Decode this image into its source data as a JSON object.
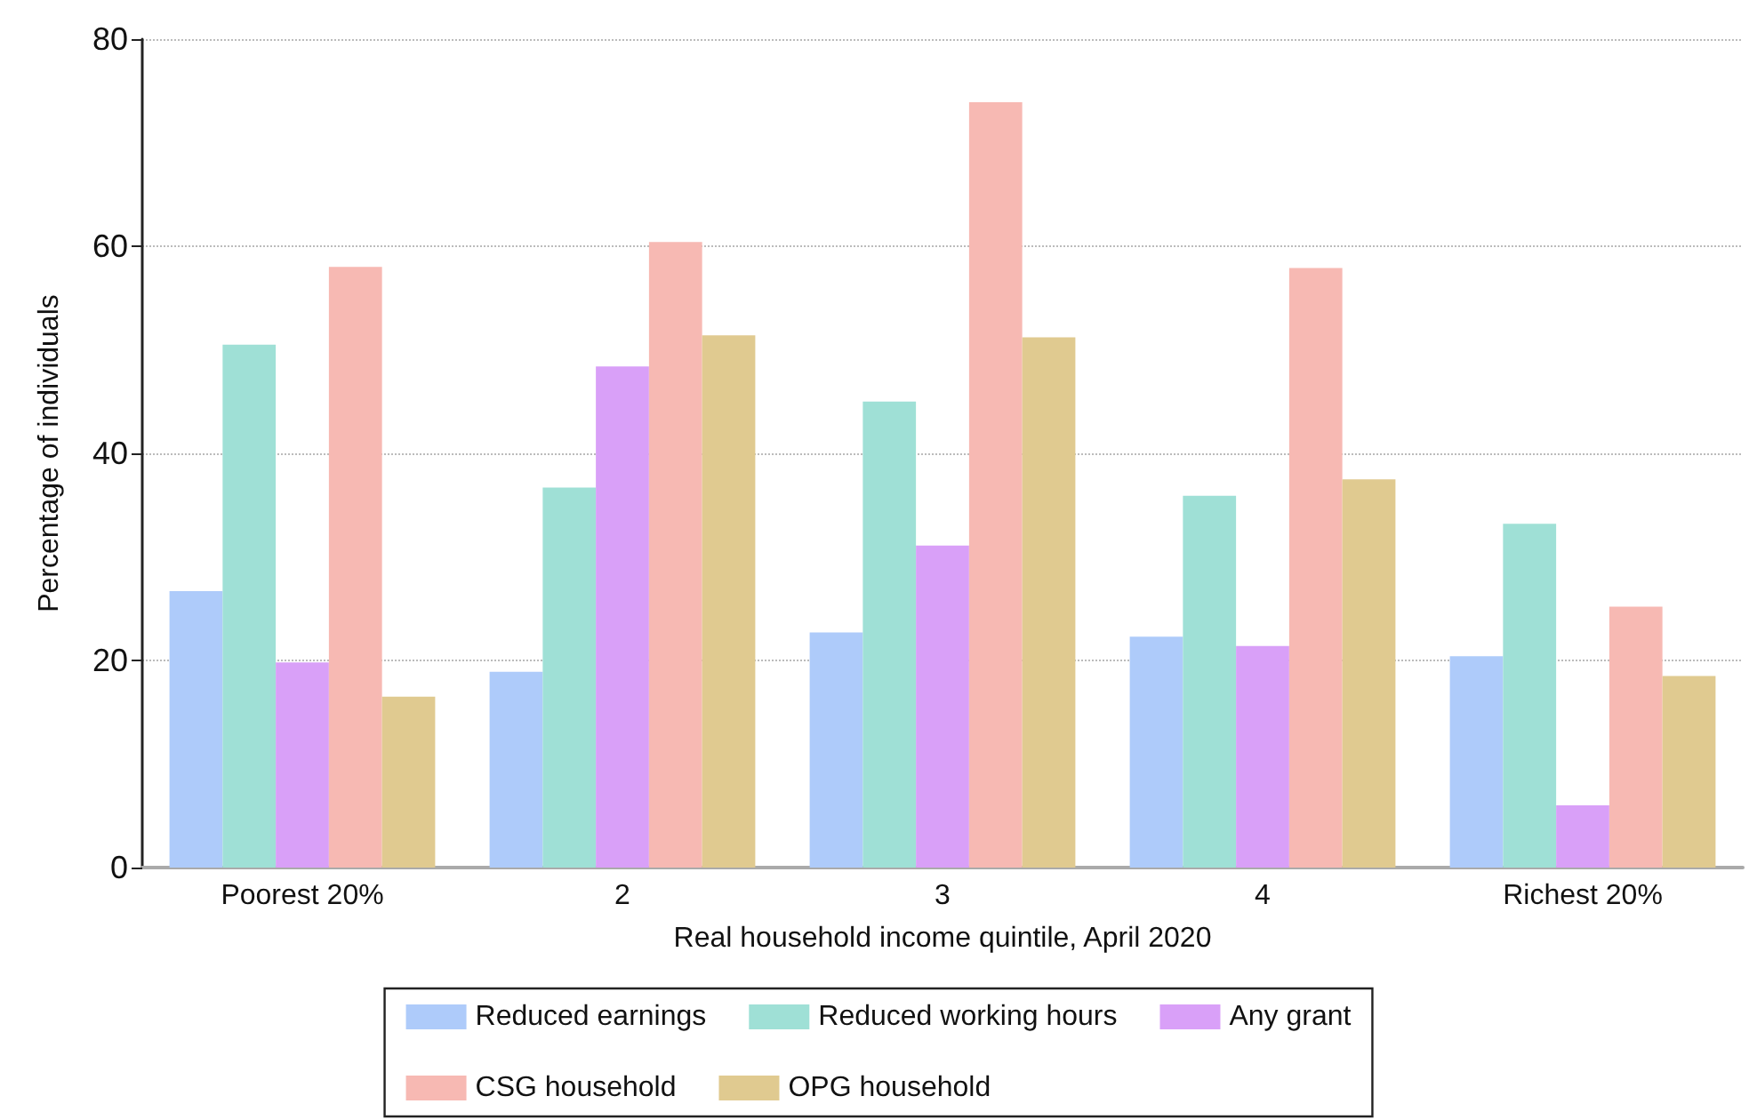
{
  "chart_data": {
    "type": "bar",
    "xlabel": "Real household income quintile, April 2020",
    "ylabel": "Percentage of individuals",
    "categories": [
      "Poorest 20%",
      "2",
      "3",
      "4",
      "Richest 20%"
    ],
    "series": [
      {
        "name": "Reduced earnings",
        "color": "#aecbfa",
        "values": [
          26.7,
          18.9,
          22.7,
          22.3,
          20.4
        ]
      },
      {
        "name": "Reduced working hours",
        "color": "#9fe0d6",
        "values": [
          50.5,
          36.7,
          45.0,
          35.9,
          33.2
        ]
      },
      {
        "name": "Any grant",
        "color": "#d9a0f8",
        "values": [
          19.8,
          48.4,
          31.1,
          21.4,
          6.0
        ]
      },
      {
        "name": "CSG household",
        "color": "#f7b9b3",
        "values": [
          58.0,
          60.4,
          73.9,
          57.9,
          25.2
        ]
      },
      {
        "name": "OPG household",
        "color": "#e0ca90",
        "values": [
          16.5,
          51.4,
          51.2,
          37.5,
          18.5
        ]
      }
    ],
    "ylim": [
      0,
      80
    ],
    "yticks": [
      0,
      20,
      40,
      60,
      80
    ],
    "grid": "y",
    "legend": "bottom"
  }
}
